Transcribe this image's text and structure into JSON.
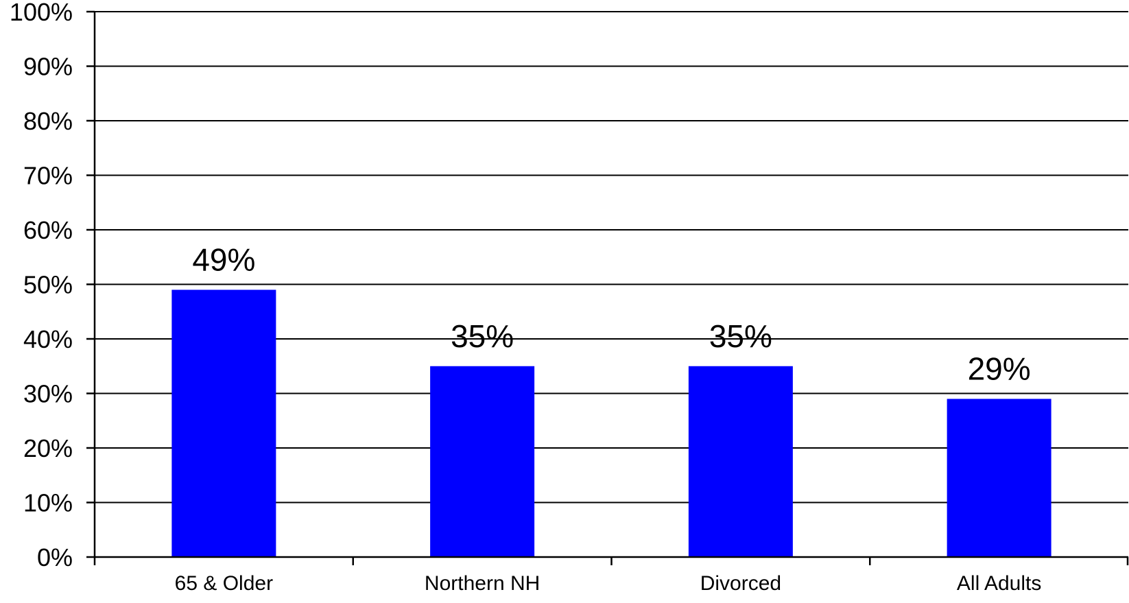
{
  "chart_data": {
    "type": "bar",
    "categories": [
      "65 & Older",
      "Northern NH",
      "Divorced",
      "All Adults"
    ],
    "values": [
      49,
      35,
      35,
      29
    ],
    "data_labels": [
      "49%",
      "35%",
      "35%",
      "29%"
    ],
    "ylim": [
      0,
      100
    ],
    "yticks": [
      0,
      10,
      20,
      30,
      40,
      50,
      60,
      70,
      80,
      90,
      100
    ],
    "ytick_labels": [
      "0%",
      "10%",
      "20%",
      "30%",
      "40%",
      "50%",
      "60%",
      "70%",
      "80%",
      "90%",
      "100%"
    ],
    "grid": true,
    "legend": "none",
    "bar_color": "#0000ff",
    "title": "",
    "xlabel": "",
    "ylabel": ""
  }
}
